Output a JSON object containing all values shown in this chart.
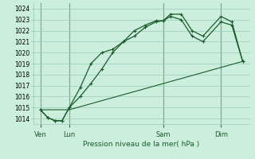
{
  "xlabel": "Pression niveau de la mer( hPa )",
  "bg_color": "#cceedd",
  "grid_color": "#99ccbb",
  "line_color": "#1a5c2a",
  "vline_color": "#336644",
  "ylim": [
    1013.5,
    1024.5
  ],
  "xlim": [
    0,
    60
  ],
  "yticks": [
    1014,
    1015,
    1016,
    1017,
    1018,
    1019,
    1020,
    1021,
    1022,
    1023,
    1024
  ],
  "day_labels": [
    "Ven",
    "Lun",
    "Sam",
    "Dim"
  ],
  "day_positions": [
    2,
    10,
    36,
    52
  ],
  "series1_x": [
    2,
    4,
    6,
    8,
    10,
    13,
    16,
    19,
    22,
    25,
    28,
    31,
    34,
    36,
    38,
    41,
    44,
    47,
    52,
    55,
    58
  ],
  "series1_y": [
    1014.8,
    1014.1,
    1013.8,
    1013.8,
    1015.0,
    1016.8,
    1019.0,
    1020.0,
    1020.3,
    1021.0,
    1022.0,
    1022.5,
    1022.9,
    1022.9,
    1023.5,
    1023.5,
    1022.0,
    1021.5,
    1023.3,
    1022.8,
    1019.2
  ],
  "series2_x": [
    2,
    4,
    6,
    8,
    10,
    13,
    16,
    19,
    22,
    25,
    28,
    31,
    34,
    36,
    38,
    41,
    44,
    47,
    52,
    55,
    58
  ],
  "series2_y": [
    1014.8,
    1014.1,
    1013.8,
    1013.8,
    1015.0,
    1016.0,
    1017.2,
    1018.5,
    1020.0,
    1021.0,
    1021.5,
    1022.3,
    1022.8,
    1022.9,
    1023.3,
    1023.0,
    1021.5,
    1021.0,
    1022.8,
    1022.5,
    1019.2
  ],
  "series3_x": [
    2,
    10,
    58
  ],
  "series3_y": [
    1014.8,
    1014.8,
    1019.2
  ]
}
